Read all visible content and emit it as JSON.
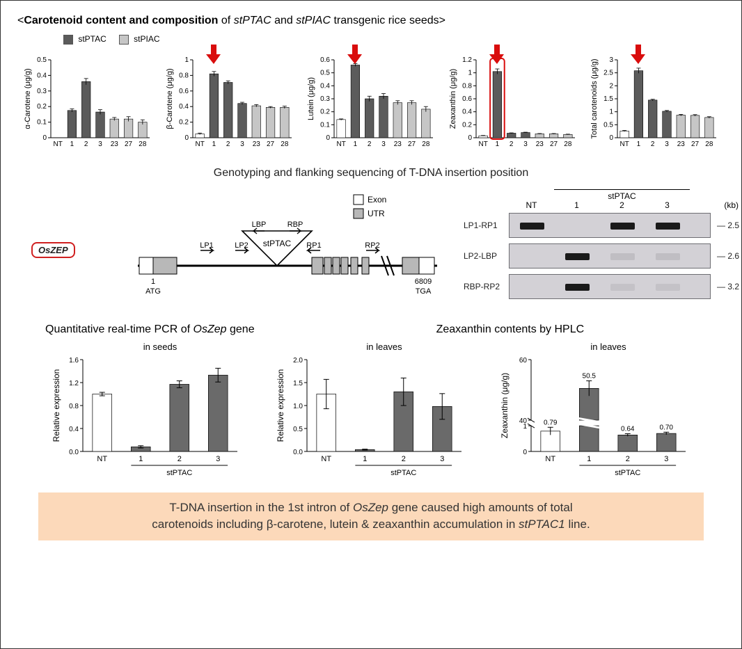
{
  "title": {
    "open": "<",
    "bold": "Carotenoid content and composition",
    "mid": " of ",
    "ital1": "stPTAC",
    "and": " and ",
    "ital2": "stPIAC",
    "end": " transgenic rice seeds>"
  },
  "legend": {
    "series": [
      {
        "label": "stPTAC",
        "color": "#5b5b5b"
      },
      {
        "label": "stPIAC",
        "color": "#c6c6c6"
      }
    ]
  },
  "topCharts": {
    "categories": [
      "NT",
      "1",
      "2",
      "3",
      "23",
      "27",
      "28"
    ],
    "whiteIndices": [
      0
    ],
    "darkIndices": [
      1,
      2,
      3
    ],
    "lightIndices": [
      4,
      5,
      6
    ],
    "colors": {
      "nt": "#ffffff",
      "dark": "#5b5b5b",
      "light": "#c6c6c6",
      "axis": "#000000",
      "tick": "#000000",
      "arrow": "#d90d0d",
      "highlightStroke": "#d90d0d"
    },
    "font": {
      "axis": 10,
      "label": 10,
      "ylabel": 11
    },
    "charts": [
      {
        "ylabel": "α-Carotene (μg/g)",
        "ylim": [
          0,
          0.5
        ],
        "ytick_step": 0.1,
        "arrow": false,
        "highlightBar": null,
        "values": [
          0.0,
          0.175,
          0.36,
          0.165,
          0.12,
          0.12,
          0.1
        ],
        "errors": [
          0,
          0.01,
          0.02,
          0.015,
          0.01,
          0.015,
          0.015
        ]
      },
      {
        "ylabel": "β-Carotene (μg/g)",
        "ylim": [
          0,
          1.0
        ],
        "ytick_step": 0.2,
        "arrow": true,
        "arrowOver": 1,
        "highlightBar": null,
        "values": [
          0.05,
          0.82,
          0.71,
          0.44,
          0.41,
          0.39,
          0.39
        ],
        "errors": [
          0.01,
          0.03,
          0.02,
          0.015,
          0.015,
          0.01,
          0.015
        ]
      },
      {
        "ylabel": "Lutein (μg/g)",
        "ylim": [
          0,
          0.6
        ],
        "ytick_step": 0.1,
        "arrow": true,
        "arrowOver": 1,
        "highlightBar": null,
        "values": [
          0.14,
          0.56,
          0.3,
          0.32,
          0.27,
          0.27,
          0.22
        ],
        "errors": [
          0.005,
          0.01,
          0.02,
          0.02,
          0.015,
          0.015,
          0.02
        ]
      },
      {
        "ylabel": "Zeaxanthin (μg/g)",
        "ylim": [
          0,
          1.2
        ],
        "ytick_step": 0.2,
        "arrow": true,
        "arrowOver": 1,
        "highlightBar": 1,
        "values": [
          0.03,
          1.02,
          0.07,
          0.08,
          0.06,
          0.06,
          0.05
        ],
        "errors": [
          0.005,
          0.04,
          0.005,
          0.005,
          0.005,
          0.005,
          0.005
        ]
      },
      {
        "ylabel": "Total carotenoids (μg/g)",
        "ylim": [
          0,
          3.0
        ],
        "ytick_step": 0.5,
        "arrow": true,
        "arrowOver": 1,
        "highlightBar": null,
        "values": [
          0.26,
          2.58,
          1.45,
          1.02,
          0.87,
          0.86,
          0.78
        ],
        "errors": [
          0.02,
          0.1,
          0.03,
          0.03,
          0.03,
          0.03,
          0.03
        ]
      }
    ]
  },
  "sectionHeadings": {
    "genotype": "Genotyping and flanking sequencing of T-DNA insertion position",
    "qpcr": "Quantitative real-time PCR of ",
    "qpcr_ital": "OsZep",
    "qpcr_end": " gene",
    "hplc": "Zeaxanthin contents by HPLC"
  },
  "geneDiagram": {
    "geneName": "OsZEP",
    "legend": [
      {
        "label": "Exon",
        "fill": "#ffffff",
        "stroke": "#000"
      },
      {
        "label": "UTR",
        "fill": "#b8b8b8",
        "stroke": "#000"
      }
    ],
    "primers": [
      "LP1",
      "LP2",
      "RP1",
      "RP2",
      "LBP",
      "RBP"
    ],
    "insert": "stPTAC",
    "leftNum": "1",
    "leftCodon": "ATG",
    "rightNum": "6809",
    "rightCodon": "TGA"
  },
  "gel": {
    "groupLabel": "stPTAC",
    "laneLabels": [
      "NT",
      "1",
      "2",
      "3"
    ],
    "kbUnit": "(kb)",
    "rows": [
      {
        "name": "LP1-RP1",
        "kb": "2.5",
        "bands": [
          1,
          0,
          1,
          1
        ]
      },
      {
        "name": "LP2-LBP",
        "kb": "2.6",
        "bands": [
          0,
          1,
          0.1,
          0.1
        ]
      },
      {
        "name": "RBP-RP2",
        "kb": "3.2",
        "bands": [
          0,
          1,
          0.08,
          0.08
        ]
      }
    ],
    "colors": {
      "gelBg": "#d3d1d6",
      "band": "#1a1a1a",
      "border": "#6d6d72"
    }
  },
  "bottomCharts": {
    "categories": [
      "NT",
      "1",
      "2",
      "3"
    ],
    "groupLabel": "stPTAC",
    "colors": {
      "nt": "#ffffff",
      "bar": "#6a6a6a",
      "axis": "#000"
    },
    "charts": [
      {
        "title": "in seeds",
        "ylabel": "Relative expression",
        "ylim": [
          0,
          1.6
        ],
        "ytick_step": 0.4,
        "values": [
          1.0,
          0.08,
          1.17,
          1.33
        ],
        "errors": [
          0.03,
          0.02,
          0.06,
          0.12
        ],
        "broken": false,
        "valueLabels": null
      },
      {
        "title": "in leaves",
        "ylabel": "Relative expression",
        "ylim": [
          0,
          2.0
        ],
        "ytick_step": 0.5,
        "values": [
          1.25,
          0.04,
          1.3,
          0.98
        ],
        "errors": [
          0.32,
          0.01,
          0.3,
          0.28
        ],
        "broken": false,
        "valueLabels": null
      },
      {
        "title": "in leaves",
        "ylabel": "Zeaxanthin (μg/g)",
        "broken": true,
        "lower": {
          "ylim": [
            0,
            1
          ],
          "ytick_labels": [
            "0",
            "1"
          ]
        },
        "upper": {
          "ylim": [
            40,
            60
          ],
          "ytick_labels": [
            "40",
            "60"
          ]
        },
        "values": [
          0.79,
          50.5,
          0.64,
          0.7
        ],
        "errors": [
          0.15,
          2.5,
          0.05,
          0.05
        ],
        "valueLabels": [
          "0.79",
          "50.5",
          "0.64",
          "0.70"
        ]
      }
    ]
  },
  "conclusion": {
    "line1_pre": "T-DNA insertion in the 1st intron of ",
    "line1_ital": "OsZep",
    "line1_post": " gene caused high amounts of total",
    "line2_pre": "carotenoids including β-carotene, lutein & zeaxanthin accumulation in ",
    "line2_ital": "stPTAC1",
    "line2_post": " line."
  }
}
